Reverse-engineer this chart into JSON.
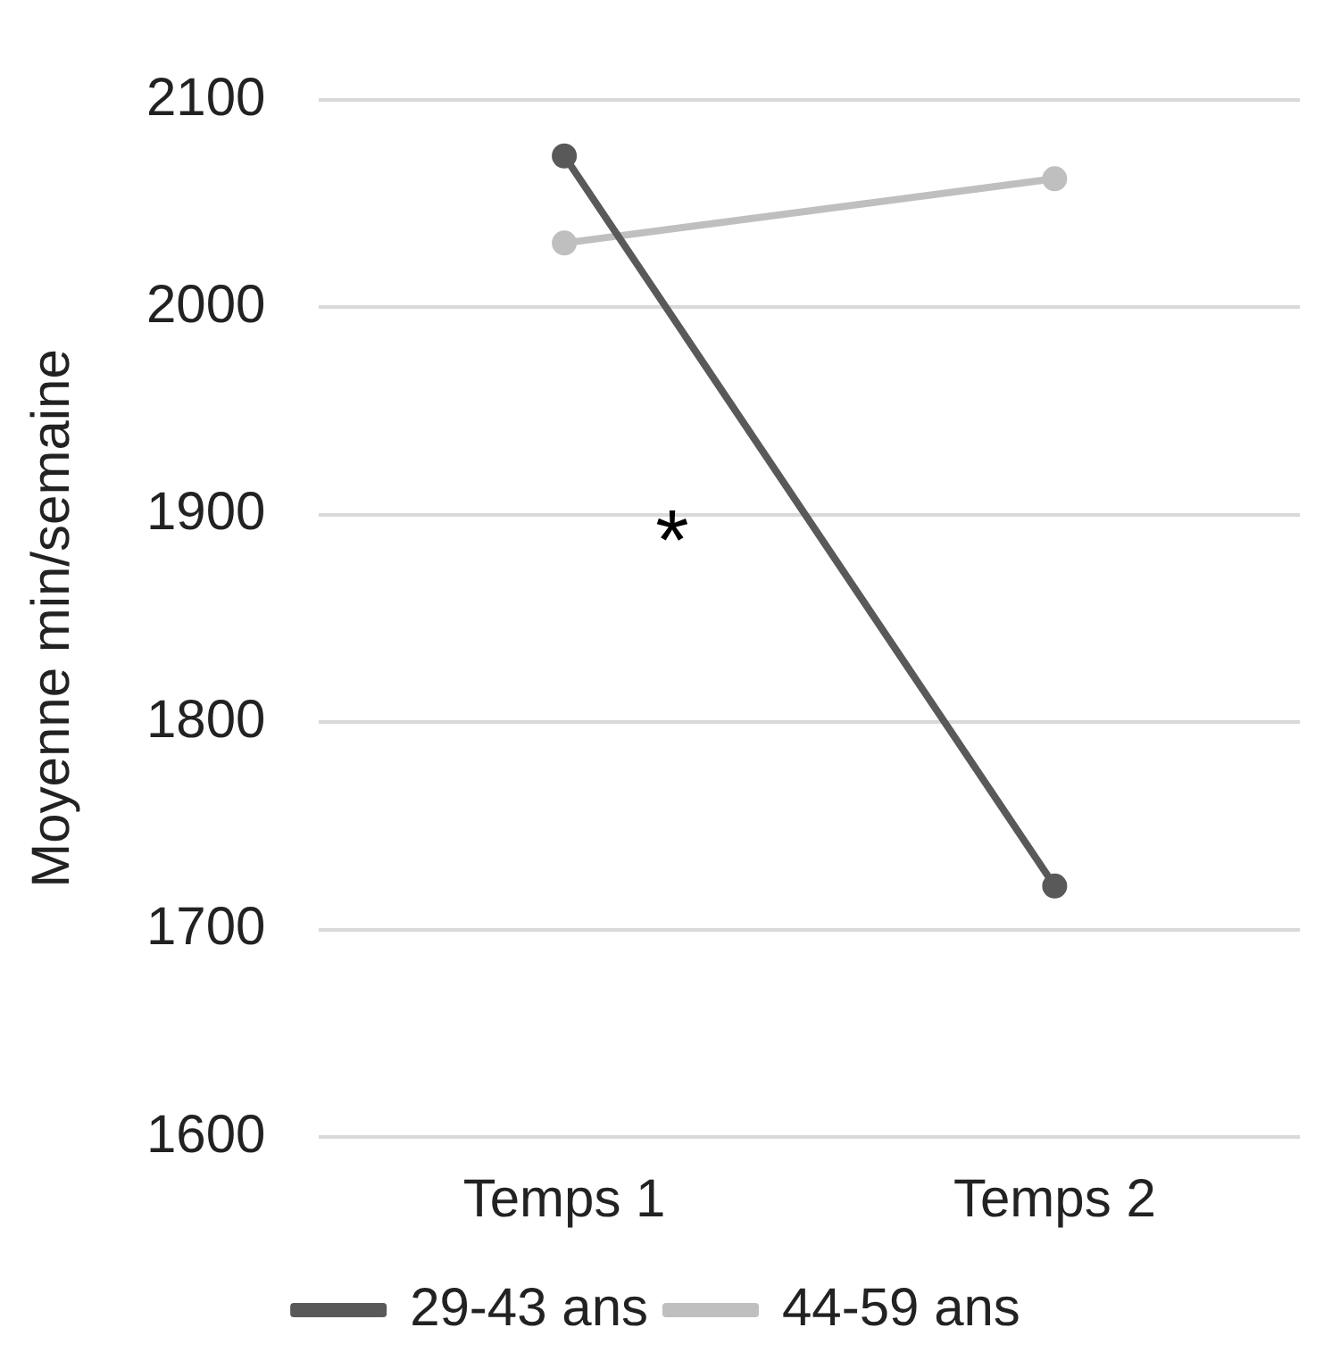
{
  "chart_data": {
    "type": "line",
    "ylabel": "Moyenne min/semaine",
    "categories": [
      "Temps 1",
      "Temps 2"
    ],
    "series": [
      {
        "name": "29-43 ans",
        "color": "#595959",
        "values": [
          2073,
          1721
        ]
      },
      {
        "name": "44-59 ans",
        "color": "#bfbfbf",
        "values": [
          2031,
          2062
        ]
      }
    ],
    "ylim": [
      1600,
      2100
    ],
    "yticks": [
      1600,
      1700,
      1800,
      1900,
      2000,
      2100
    ],
    "grid": "y",
    "legend": "bottom",
    "marker": "circle",
    "line_style": "solid",
    "annotations": [
      "*"
    ]
  }
}
